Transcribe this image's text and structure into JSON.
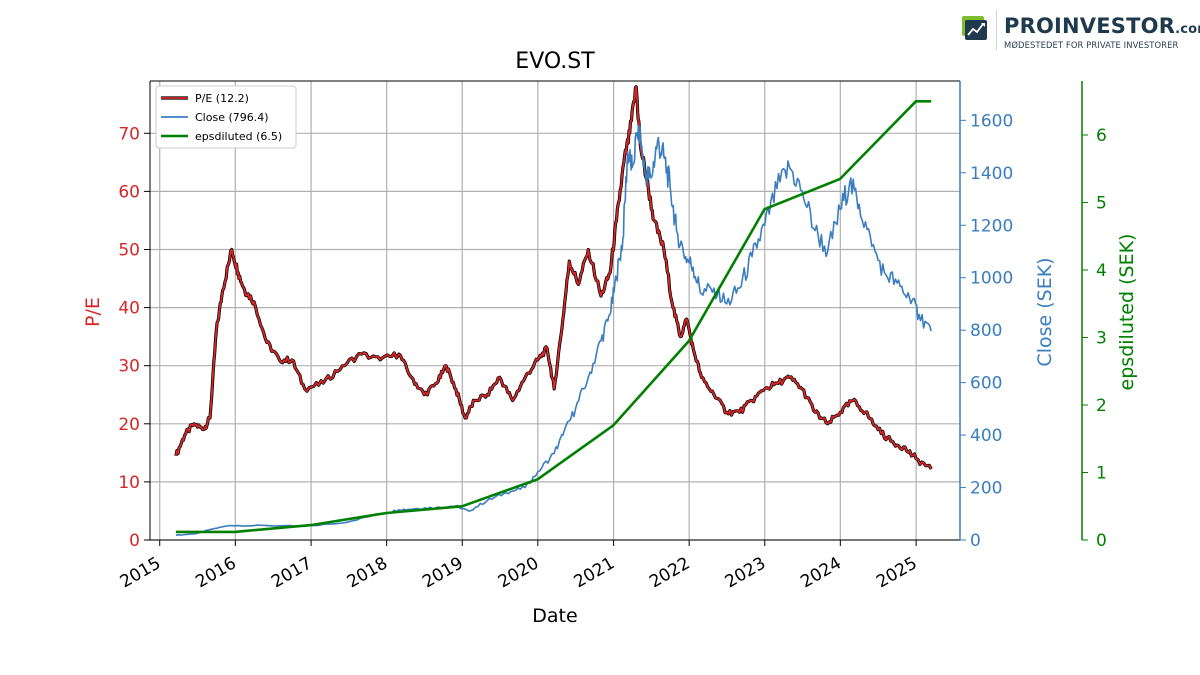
{
  "logo": {
    "brand": "PROINVESTOR",
    "domain": ".com",
    "tagline": "MØDESTEDET FOR PRIVATE INVESTORER"
  },
  "chart_data": {
    "type": "line",
    "title": "EVO.ST",
    "xlabel": "Date",
    "x_ticks": [
      "2015",
      "2016",
      "2017",
      "2018",
      "2019",
      "2020",
      "2021",
      "2022",
      "2023",
      "2024",
      "2025"
    ],
    "x_range": [
      "2014-11-15",
      "2025-08-01"
    ],
    "grid": true,
    "legend_position": "top-left",
    "axes": {
      "pe": {
        "label": "P/E",
        "ylim": [
          0,
          79
        ],
        "ticks": [
          0,
          10,
          20,
          30,
          40,
          50,
          60,
          70
        ],
        "color": "#d62728"
      },
      "close": {
        "label": "Close (SEK)",
        "ylim": [
          0,
          1750
        ],
        "ticks": [
          0,
          200,
          400,
          600,
          800,
          1000,
          1200,
          1400,
          1600
        ],
        "color": "#3a7ebf"
      },
      "eps": {
        "label": "epsdiluted (SEK)",
        "ylim": [
          0,
          6.8
        ],
        "ticks": [
          0,
          1,
          2,
          3,
          4,
          5,
          6
        ],
        "color": "#008000"
      }
    },
    "series": [
      {
        "name": "P/E (12.2)",
        "axis": "pe",
        "color": "#d62728",
        "edge_color": "#000000",
        "points": [
          [
            "2015-03-20",
            14.5
          ],
          [
            "2015-05-01",
            18.0
          ],
          [
            "2015-06-15",
            20.0
          ],
          [
            "2015-08-01",
            19.0
          ],
          [
            "2015-09-01",
            21.0
          ],
          [
            "2015-10-01",
            36.0
          ],
          [
            "2015-11-01",
            43.0
          ],
          [
            "2015-12-15",
            50.0
          ],
          [
            "2016-01-15",
            46.0
          ],
          [
            "2016-02-15",
            43.0
          ],
          [
            "2016-04-01",
            41.0
          ],
          [
            "2016-06-01",
            34.0
          ],
          [
            "2016-08-01",
            31.0
          ],
          [
            "2016-10-01",
            31.0
          ],
          [
            "2016-12-01",
            26.0
          ],
          [
            "2017-03-01",
            27.0
          ],
          [
            "2017-06-01",
            30.0
          ],
          [
            "2017-09-01",
            32.0
          ],
          [
            "2017-12-01",
            31.0
          ],
          [
            "2018-03-01",
            32.0
          ],
          [
            "2018-05-01",
            28.0
          ],
          [
            "2018-07-01",
            25.0
          ],
          [
            "2018-09-01",
            27.0
          ],
          [
            "2018-10-15",
            30.0
          ],
          [
            "2018-12-01",
            26.0
          ],
          [
            "2019-01-15",
            21.0
          ],
          [
            "2019-03-01",
            24.0
          ],
          [
            "2019-05-01",
            25.0
          ],
          [
            "2019-07-01",
            28.0
          ],
          [
            "2019-09-01",
            24.0
          ],
          [
            "2019-11-01",
            28.0
          ],
          [
            "2020-01-01",
            31.0
          ],
          [
            "2020-02-15",
            33.0
          ],
          [
            "2020-03-20",
            26.0
          ],
          [
            "2020-05-01",
            38.0
          ],
          [
            "2020-06-01",
            48.0
          ],
          [
            "2020-07-15",
            44.0
          ],
          [
            "2020-09-01",
            50.0
          ],
          [
            "2020-11-01",
            42.0
          ],
          [
            "2020-12-15",
            46.0
          ],
          [
            "2021-01-15",
            55.0
          ],
          [
            "2021-02-20",
            65.0
          ],
          [
            "2021-03-20",
            70.0
          ],
          [
            "2021-04-20",
            78.0
          ],
          [
            "2021-05-10",
            68.0
          ],
          [
            "2021-06-10",
            62.0
          ],
          [
            "2021-07-15",
            55.0
          ],
          [
            "2021-09-01",
            50.0
          ],
          [
            "2021-10-15",
            40.0
          ],
          [
            "2021-11-20",
            35.0
          ],
          [
            "2021-12-20",
            38.0
          ],
          [
            "2022-01-20",
            33.0
          ],
          [
            "2022-03-01",
            28.0
          ],
          [
            "2022-05-01",
            25.0
          ],
          [
            "2022-07-01",
            22.0
          ],
          [
            "2022-09-01",
            22.0
          ],
          [
            "2022-11-01",
            24.0
          ],
          [
            "2023-01-01",
            26.0
          ],
          [
            "2023-03-01",
            27.0
          ],
          [
            "2023-05-01",
            28.0
          ],
          [
            "2023-07-01",
            26.0
          ],
          [
            "2023-09-01",
            22.0
          ],
          [
            "2023-11-01",
            20.0
          ],
          [
            "2024-01-01",
            22.0
          ],
          [
            "2024-03-01",
            24.0
          ],
          [
            "2024-05-01",
            22.0
          ],
          [
            "2024-07-01",
            19.0
          ],
          [
            "2024-09-01",
            17.0
          ],
          [
            "2024-11-01",
            16.0
          ],
          [
            "2025-01-01",
            14.0
          ],
          [
            "2025-03-15",
            12.2
          ]
        ]
      },
      {
        "name": "Close (796.4)",
        "axis": "close",
        "color": "#3a7ebf",
        "points": [
          [
            "2015-03-20",
            18
          ],
          [
            "2015-07-01",
            25
          ],
          [
            "2015-09-01",
            40
          ],
          [
            "2015-12-01",
            55
          ],
          [
            "2016-06-01",
            55
          ],
          [
            "2016-12-01",
            52
          ],
          [
            "2017-06-01",
            65
          ],
          [
            "2017-12-01",
            100
          ],
          [
            "2018-03-01",
            115
          ],
          [
            "2018-06-01",
            120
          ],
          [
            "2018-09-01",
            125
          ],
          [
            "2018-12-01",
            130
          ],
          [
            "2019-02-01",
            110
          ],
          [
            "2019-05-01",
            150
          ],
          [
            "2019-08-01",
            180
          ],
          [
            "2019-11-01",
            200
          ],
          [
            "2020-01-01",
            260
          ],
          [
            "2020-03-20",
            330
          ],
          [
            "2020-05-01",
            400
          ],
          [
            "2020-07-01",
            500
          ],
          [
            "2020-09-01",
            620
          ],
          [
            "2020-11-01",
            760
          ],
          [
            "2020-12-15",
            860
          ],
          [
            "2021-01-15",
            1000
          ],
          [
            "2021-02-15",
            1150
          ],
          [
            "2021-03-10",
            1480
          ],
          [
            "2021-04-01",
            1420
          ],
          [
            "2021-05-01",
            1580
          ],
          [
            "2021-06-01",
            1400
          ],
          [
            "2021-07-01",
            1380
          ],
          [
            "2021-08-01",
            1520
          ],
          [
            "2021-09-01",
            1460
          ],
          [
            "2021-10-01",
            1350
          ],
          [
            "2021-11-01",
            1180
          ],
          [
            "2021-12-15",
            1080
          ],
          [
            "2022-01-20",
            1040
          ],
          [
            "2022-03-01",
            940
          ],
          [
            "2022-05-01",
            960
          ],
          [
            "2022-07-01",
            900
          ],
          [
            "2022-09-01",
            960
          ],
          [
            "2022-11-01",
            1080
          ],
          [
            "2023-01-01",
            1200
          ],
          [
            "2023-03-01",
            1340
          ],
          [
            "2023-05-01",
            1420
          ],
          [
            "2023-07-01",
            1330
          ],
          [
            "2023-09-01",
            1180
          ],
          [
            "2023-11-01",
            1100
          ],
          [
            "2024-01-01",
            1260
          ],
          [
            "2024-02-15",
            1360
          ],
          [
            "2024-04-01",
            1280
          ],
          [
            "2024-06-01",
            1120
          ],
          [
            "2024-08-01",
            1020
          ],
          [
            "2024-10-01",
            980
          ],
          [
            "2024-12-01",
            920
          ],
          [
            "2025-01-15",
            860
          ],
          [
            "2025-03-15",
            796.4
          ]
        ]
      },
      {
        "name": "epsdiluted (6.5)",
        "axis": "eps",
        "color": "#008000",
        "points": [
          [
            "2015-03-20",
            0.12
          ],
          [
            "2015-12-31",
            0.12
          ],
          [
            "2016-12-31",
            0.22
          ],
          [
            "2017-12-31",
            0.4
          ],
          [
            "2018-12-31",
            0.5
          ],
          [
            "2019-12-31",
            0.9
          ],
          [
            "2020-12-31",
            1.7
          ],
          [
            "2021-12-31",
            2.95
          ],
          [
            "2022-12-31",
            4.9
          ],
          [
            "2023-12-31",
            5.35
          ],
          [
            "2024-12-31",
            6.5
          ],
          [
            "2025-03-15",
            6.5
          ]
        ]
      }
    ]
  }
}
